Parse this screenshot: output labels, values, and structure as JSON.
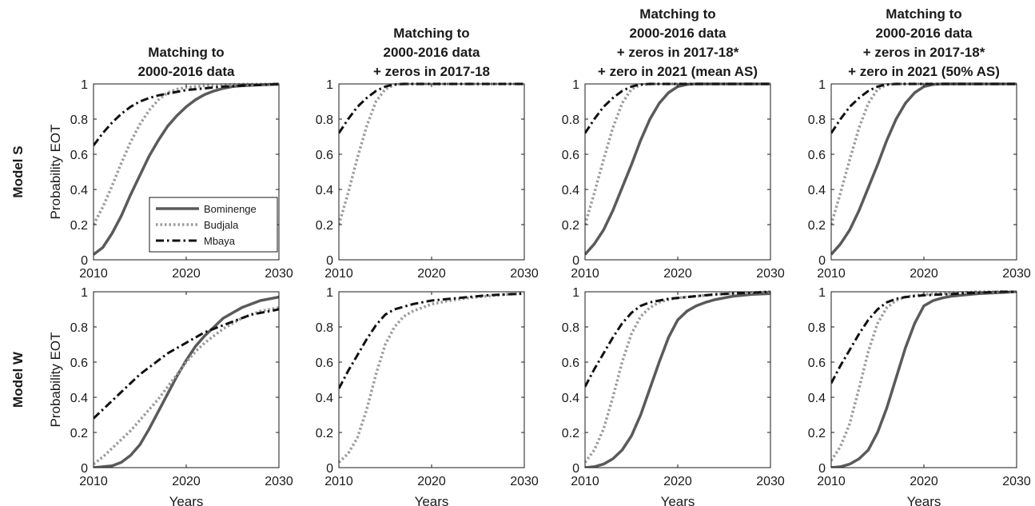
{
  "figure": {
    "row_labels": [
      "Model S",
      "Model W"
    ]
  },
  "colors": {
    "Bominenge": "#5a5a5a",
    "Budjala": "#9a9a9a",
    "Mbaya": "#111111"
  },
  "chart_data": [
    {
      "type": "line",
      "row": 0,
      "col": 0,
      "title": [
        "Matching to",
        "2000-2016 data"
      ],
      "xlabel": "",
      "ylabel": "Probability EOT",
      "xlim": [
        2010,
        2030
      ],
      "ylim": [
        0,
        1
      ],
      "xticks": [
        2010,
        2020,
        2030
      ],
      "yticks": [
        0,
        0.2,
        0.4,
        0.6,
        0.8,
        1
      ],
      "grid": false,
      "legend": "inside bottom-right",
      "series": [
        {
          "name": "Bominenge",
          "style": "solid",
          "x": [
            2010,
            2011,
            2012,
            2013,
            2014,
            2015,
            2016,
            2017,
            2018,
            2019,
            2020,
            2021,
            2022,
            2023,
            2024,
            2025,
            2026,
            2028,
            2030
          ],
          "y": [
            0.03,
            0.07,
            0.15,
            0.25,
            0.37,
            0.48,
            0.59,
            0.68,
            0.76,
            0.82,
            0.87,
            0.91,
            0.94,
            0.96,
            0.975,
            0.985,
            0.99,
            0.995,
            0.998
          ]
        },
        {
          "name": "Budjala",
          "style": "dotted",
          "x": [
            2010,
            2011,
            2012,
            2013,
            2014,
            2015,
            2016,
            2017,
            2018,
            2019,
            2020,
            2022,
            2024,
            2026,
            2030
          ],
          "y": [
            0.2,
            0.3,
            0.42,
            0.55,
            0.67,
            0.77,
            0.85,
            0.91,
            0.95,
            0.97,
            0.98,
            0.99,
            0.995,
            0.998,
            1.0
          ]
        },
        {
          "name": "Mbaya",
          "style": "dashdot",
          "x": [
            2010,
            2011,
            2012,
            2013,
            2014,
            2015,
            2016,
            2017,
            2018,
            2019,
            2020,
            2022,
            2024,
            2026,
            2028,
            2030
          ],
          "y": [
            0.65,
            0.72,
            0.78,
            0.83,
            0.87,
            0.9,
            0.92,
            0.935,
            0.945,
            0.955,
            0.965,
            0.975,
            0.985,
            0.99,
            0.995,
            1.0
          ]
        }
      ]
    },
    {
      "type": "line",
      "row": 0,
      "col": 1,
      "title": [
        "Matching to",
        "2000-2016 data",
        "+ zeros in 2017-18"
      ],
      "xlabel": "",
      "ylabel": "",
      "xlim": [
        2010,
        2030
      ],
      "ylim": [
        0,
        1
      ],
      "xticks": [
        2010,
        2020,
        2030
      ],
      "yticks": [
        0,
        0.2,
        0.4,
        0.6,
        0.8,
        1
      ],
      "grid": false,
      "series": [
        {
          "name": "Budjala",
          "style": "dotted",
          "x": [
            2010,
            2011,
            2012,
            2013,
            2014,
            2015,
            2016,
            2017,
            2018,
            2020,
            2030
          ],
          "y": [
            0.2,
            0.38,
            0.58,
            0.76,
            0.9,
            0.97,
            0.995,
            1.0,
            1.0,
            1.0,
            1.0
          ]
        },
        {
          "name": "Mbaya",
          "style": "dashdot",
          "x": [
            2010,
            2011,
            2012,
            2013,
            2014,
            2015,
            2016,
            2017,
            2018,
            2020,
            2030
          ],
          "y": [
            0.72,
            0.8,
            0.87,
            0.92,
            0.96,
            0.985,
            0.997,
            1.0,
            1.0,
            1.0,
            1.0
          ]
        }
      ]
    },
    {
      "type": "line",
      "row": 0,
      "col": 2,
      "title": [
        "Matching to",
        "2000-2016 data",
        "+ zeros in 2017-18*",
        "+ zero in 2021 (mean AS)"
      ],
      "xlabel": "",
      "ylabel": "",
      "xlim": [
        2010,
        2030
      ],
      "ylim": [
        0,
        1
      ],
      "xticks": [
        2010,
        2020,
        2030
      ],
      "yticks": [
        0,
        0.2,
        0.4,
        0.6,
        0.8,
        1
      ],
      "grid": false,
      "series": [
        {
          "name": "Bominenge",
          "style": "solid",
          "x": [
            2010,
            2011,
            2012,
            2013,
            2014,
            2015,
            2016,
            2017,
            2018,
            2019,
            2020,
            2021,
            2022,
            2024,
            2030
          ],
          "y": [
            0.03,
            0.09,
            0.17,
            0.28,
            0.41,
            0.54,
            0.68,
            0.8,
            0.89,
            0.95,
            0.985,
            0.997,
            1.0,
            1.0,
            1.0
          ]
        },
        {
          "name": "Budjala",
          "style": "dotted",
          "x": [
            2010,
            2011,
            2012,
            2013,
            2014,
            2015,
            2016,
            2017,
            2018,
            2020,
            2030
          ],
          "y": [
            0.2,
            0.38,
            0.57,
            0.75,
            0.89,
            0.97,
            0.995,
            1.0,
            1.0,
            1.0,
            1.0
          ]
        },
        {
          "name": "Mbaya",
          "style": "dashdot",
          "x": [
            2010,
            2011,
            2012,
            2013,
            2014,
            2015,
            2016,
            2017,
            2018,
            2020,
            2030
          ],
          "y": [
            0.72,
            0.8,
            0.87,
            0.92,
            0.96,
            0.985,
            0.997,
            1.0,
            1.0,
            1.0,
            1.0
          ]
        }
      ]
    },
    {
      "type": "line",
      "row": 0,
      "col": 3,
      "title": [
        "Matching to",
        "2000-2016 data",
        "+ zeros in 2017-18*",
        "+ zero in 2021 (50% AS)"
      ],
      "xlabel": "",
      "ylabel": "",
      "xlim": [
        2010,
        2030
      ],
      "ylim": [
        0,
        1
      ],
      "xticks": [
        2010,
        2020,
        2030
      ],
      "yticks": [
        0,
        0.2,
        0.4,
        0.6,
        0.8,
        1
      ],
      "grid": false,
      "series": [
        {
          "name": "Bominenge",
          "style": "solid",
          "x": [
            2010,
            2011,
            2012,
            2013,
            2014,
            2015,
            2016,
            2017,
            2018,
            2019,
            2020,
            2021,
            2022,
            2024,
            2030
          ],
          "y": [
            0.03,
            0.09,
            0.17,
            0.28,
            0.41,
            0.54,
            0.68,
            0.8,
            0.89,
            0.95,
            0.985,
            0.997,
            1.0,
            1.0,
            1.0
          ]
        },
        {
          "name": "Budjala",
          "style": "dotted",
          "x": [
            2010,
            2011,
            2012,
            2013,
            2014,
            2015,
            2016,
            2017,
            2018,
            2020,
            2030
          ],
          "y": [
            0.2,
            0.38,
            0.57,
            0.75,
            0.89,
            0.97,
            0.995,
            1.0,
            1.0,
            1.0,
            1.0
          ]
        },
        {
          "name": "Mbaya",
          "style": "dashdot",
          "x": [
            2010,
            2011,
            2012,
            2013,
            2014,
            2015,
            2016,
            2017,
            2018,
            2020,
            2030
          ],
          "y": [
            0.72,
            0.8,
            0.87,
            0.92,
            0.96,
            0.985,
            0.997,
            1.0,
            1.0,
            1.0,
            1.0
          ]
        }
      ]
    },
    {
      "type": "line",
      "row": 1,
      "col": 0,
      "title": [],
      "xlabel": "Years",
      "ylabel": "Probability EOT",
      "xlim": [
        2010,
        2030
      ],
      "ylim": [
        0,
        1
      ],
      "xticks": [
        2010,
        2020,
        2030
      ],
      "yticks": [
        0,
        0.2,
        0.4,
        0.6,
        0.8,
        1
      ],
      "grid": false,
      "series": [
        {
          "name": "Bominenge",
          "style": "solid",
          "x": [
            2010,
            2011,
            2012,
            2013,
            2014,
            2015,
            2016,
            2017,
            2018,
            2019,
            2020,
            2021,
            2022,
            2023,
            2024,
            2025,
            2026,
            2027,
            2028,
            2029,
            2030
          ],
          "y": [
            0.0,
            0.005,
            0.01,
            0.03,
            0.07,
            0.13,
            0.22,
            0.32,
            0.42,
            0.52,
            0.61,
            0.69,
            0.75,
            0.8,
            0.85,
            0.88,
            0.91,
            0.93,
            0.95,
            0.96,
            0.97
          ]
        },
        {
          "name": "Budjala",
          "style": "dotted",
          "x": [
            2010,
            2011,
            2012,
            2013,
            2014,
            2015,
            2016,
            2017,
            2018,
            2019,
            2020,
            2021,
            2022,
            2023,
            2024,
            2025,
            2026,
            2027,
            2028,
            2029,
            2030
          ],
          "y": [
            0.02,
            0.06,
            0.11,
            0.16,
            0.21,
            0.27,
            0.33,
            0.39,
            0.46,
            0.53,
            0.6,
            0.66,
            0.71,
            0.75,
            0.79,
            0.82,
            0.85,
            0.87,
            0.89,
            0.9,
            0.91
          ]
        },
        {
          "name": "Mbaya",
          "style": "dashdot",
          "x": [
            2010,
            2011,
            2012,
            2013,
            2014,
            2015,
            2016,
            2017,
            2018,
            2019,
            2020,
            2021,
            2022,
            2023,
            2024,
            2025,
            2026,
            2027,
            2028,
            2029,
            2030
          ],
          "y": [
            0.28,
            0.33,
            0.38,
            0.43,
            0.48,
            0.53,
            0.57,
            0.61,
            0.65,
            0.68,
            0.71,
            0.74,
            0.77,
            0.79,
            0.81,
            0.83,
            0.85,
            0.87,
            0.88,
            0.89,
            0.9
          ]
        }
      ]
    },
    {
      "type": "line",
      "row": 1,
      "col": 1,
      "title": [],
      "xlabel": "Years",
      "ylabel": "",
      "xlim": [
        2010,
        2030
      ],
      "ylim": [
        0,
        1
      ],
      "xticks": [
        2010,
        2020,
        2030
      ],
      "yticks": [
        0,
        0.2,
        0.4,
        0.6,
        0.8,
        1
      ],
      "grid": false,
      "series": [
        {
          "name": "Budjala",
          "style": "dotted",
          "x": [
            2010,
            2011,
            2012,
            2013,
            2014,
            2015,
            2016,
            2017,
            2018,
            2019,
            2020,
            2022,
            2024,
            2026,
            2028,
            2030
          ],
          "y": [
            0.03,
            0.08,
            0.17,
            0.33,
            0.53,
            0.7,
            0.8,
            0.86,
            0.89,
            0.91,
            0.93,
            0.95,
            0.965,
            0.975,
            0.985,
            0.99
          ]
        },
        {
          "name": "Mbaya",
          "style": "dashdot",
          "x": [
            2010,
            2011,
            2012,
            2013,
            2014,
            2015,
            2016,
            2017,
            2018,
            2019,
            2020,
            2022,
            2024,
            2026,
            2028,
            2030
          ],
          "y": [
            0.45,
            0.55,
            0.64,
            0.73,
            0.81,
            0.87,
            0.9,
            0.915,
            0.93,
            0.94,
            0.95,
            0.96,
            0.97,
            0.98,
            0.985,
            0.99
          ]
        }
      ]
    },
    {
      "type": "line",
      "row": 1,
      "col": 2,
      "title": [],
      "xlabel": "Years",
      "ylabel": "",
      "xlim": [
        2010,
        2030
      ],
      "ylim": [
        0,
        1
      ],
      "xticks": [
        2010,
        2020,
        2030
      ],
      "yticks": [
        0,
        0.2,
        0.4,
        0.6,
        0.8,
        1
      ],
      "grid": false,
      "series": [
        {
          "name": "Bominenge",
          "style": "solid",
          "x": [
            2010,
            2011,
            2012,
            2013,
            2014,
            2015,
            2016,
            2017,
            2018,
            2019,
            2020,
            2021,
            2022,
            2023,
            2024,
            2025,
            2026,
            2028,
            2030
          ],
          "y": [
            0.0,
            0.005,
            0.02,
            0.05,
            0.1,
            0.18,
            0.3,
            0.45,
            0.6,
            0.74,
            0.84,
            0.89,
            0.92,
            0.94,
            0.955,
            0.965,
            0.975,
            0.985,
            0.99
          ]
        },
        {
          "name": "Budjala",
          "style": "dotted",
          "x": [
            2010,
            2011,
            2012,
            2013,
            2014,
            2015,
            2016,
            2017,
            2018,
            2019,
            2020,
            2022,
            2024,
            2026,
            2028,
            2030
          ],
          "y": [
            0.03,
            0.1,
            0.22,
            0.4,
            0.6,
            0.76,
            0.86,
            0.91,
            0.94,
            0.955,
            0.965,
            0.975,
            0.985,
            0.99,
            0.995,
            1.0
          ]
        },
        {
          "name": "Mbaya",
          "style": "dashdot",
          "x": [
            2010,
            2011,
            2012,
            2013,
            2014,
            2015,
            2016,
            2017,
            2018,
            2019,
            2020,
            2022,
            2024,
            2026,
            2028,
            2030
          ],
          "y": [
            0.46,
            0.56,
            0.65,
            0.74,
            0.82,
            0.88,
            0.92,
            0.94,
            0.95,
            0.96,
            0.965,
            0.975,
            0.985,
            0.99,
            0.995,
            1.0
          ]
        }
      ]
    },
    {
      "type": "line",
      "row": 1,
      "col": 3,
      "title": [],
      "xlabel": "Years",
      "ylabel": "",
      "xlim": [
        2010,
        2030
      ],
      "ylim": [
        0,
        1
      ],
      "xticks": [
        2010,
        2020,
        2030
      ],
      "yticks": [
        0,
        0.2,
        0.4,
        0.6,
        0.8,
        1
      ],
      "grid": false,
      "series": [
        {
          "name": "Bominenge",
          "style": "solid",
          "x": [
            2010,
            2011,
            2012,
            2013,
            2014,
            2015,
            2016,
            2017,
            2018,
            2019,
            2020,
            2021,
            2022,
            2023,
            2024,
            2025,
            2026,
            2028,
            2030
          ],
          "y": [
            0.0,
            0.005,
            0.02,
            0.05,
            0.1,
            0.2,
            0.34,
            0.51,
            0.68,
            0.82,
            0.92,
            0.95,
            0.965,
            0.975,
            0.98,
            0.985,
            0.99,
            0.995,
            1.0
          ]
        },
        {
          "name": "Budjala",
          "style": "dotted",
          "x": [
            2010,
            2011,
            2012,
            2013,
            2014,
            2015,
            2016,
            2017,
            2018,
            2019,
            2020,
            2022,
            2024,
            2026,
            2028,
            2030
          ],
          "y": [
            0.04,
            0.12,
            0.25,
            0.45,
            0.66,
            0.82,
            0.91,
            0.95,
            0.97,
            0.98,
            0.985,
            0.99,
            0.995,
            1.0,
            1.0,
            1.0
          ]
        },
        {
          "name": "Mbaya",
          "style": "dashdot",
          "x": [
            2010,
            2011,
            2012,
            2013,
            2014,
            2015,
            2016,
            2017,
            2018,
            2019,
            2020,
            2022,
            2024,
            2026,
            2028,
            2030
          ],
          "y": [
            0.48,
            0.58,
            0.67,
            0.76,
            0.84,
            0.9,
            0.94,
            0.96,
            0.97,
            0.975,
            0.98,
            0.985,
            0.99,
            0.995,
            1.0,
            1.0
          ]
        }
      ]
    }
  ]
}
